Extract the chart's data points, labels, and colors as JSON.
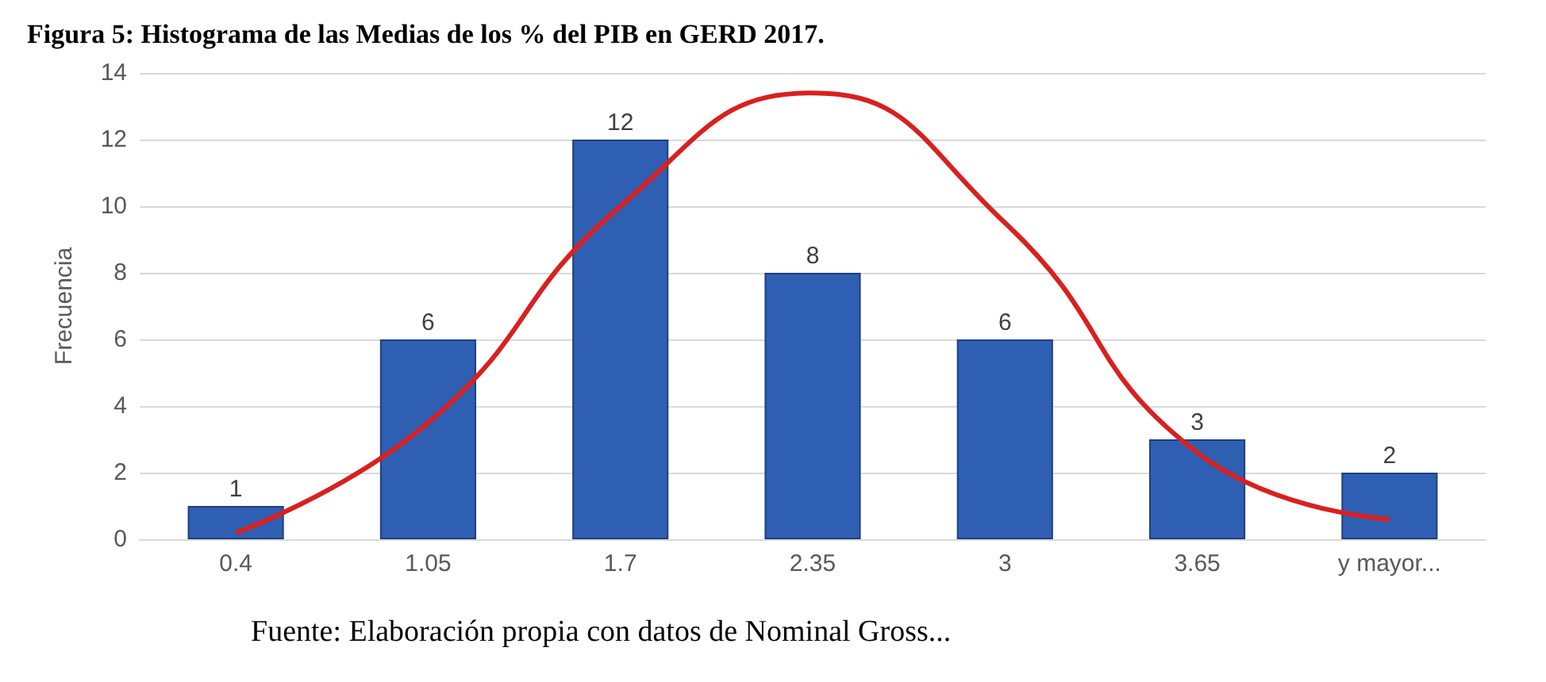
{
  "chart_data": {
    "type": "bar",
    "title": "Figura 5: Histograma de las Medias de los % del PIB en GERD 2017.",
    "ylabel": "Frecuencia",
    "annotations": [
      "Fuente: Elaboración propia con datos de Nominal Gross..."
    ],
    "categories": [
      "0.4",
      "1.05",
      "1.7",
      "2.35",
      "3",
      "3.65",
      "y mayor..."
    ],
    "series": [
      {
        "type": "bar",
        "color": "#2f5fb3",
        "values": [
          1,
          6,
          12,
          8,
          6,
          3,
          2
        ],
        "value_labels": [
          "1",
          "6",
          "12",
          "8",
          "6",
          "3",
          "2"
        ]
      },
      {
        "type": "line",
        "color": "#d9201f",
        "values": [
          0.2,
          3.5,
          10,
          13.4,
          9.5,
          2.6,
          0.6
        ],
        "marker": "none",
        "line_style": "solid"
      }
    ],
    "ylim": [
      0,
      14
    ],
    "yticks": [
      0,
      2,
      4,
      6,
      8,
      10,
      12,
      14
    ],
    "grid": "y"
  }
}
